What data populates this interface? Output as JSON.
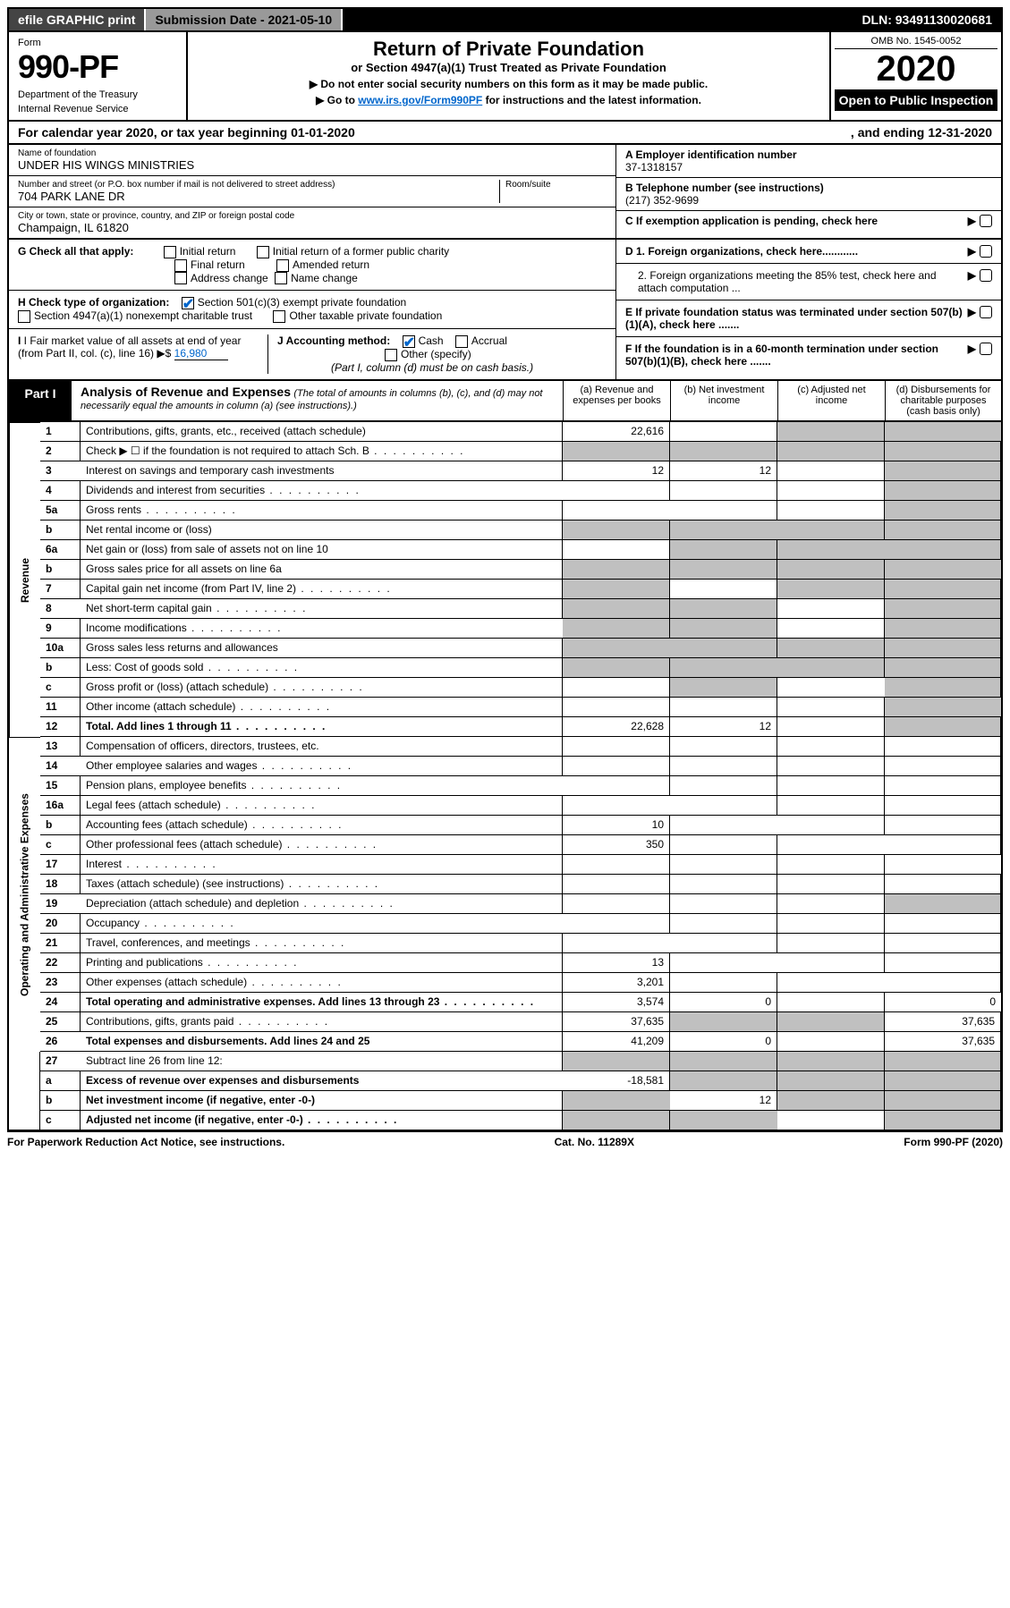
{
  "topbar": {
    "efile": "efile GRAPHIC print",
    "submission_label": "Submission Date - 2021-05-10",
    "dln": "DLN: 93491130020681"
  },
  "header": {
    "form_label": "Form",
    "form_number": "990-PF",
    "dept1": "Department of the Treasury",
    "dept2": "Internal Revenue Service",
    "title": "Return of Private Foundation",
    "subtitle": "or Section 4947(a)(1) Trust Treated as Private Foundation",
    "note1": "▶ Do not enter social security numbers on this form as it may be made public.",
    "note2_pre": "▶ Go to ",
    "note2_link": "www.irs.gov/Form990PF",
    "note2_post": " for instructions and the latest information.",
    "omb": "OMB No. 1545-0052",
    "year": "2020",
    "open": "Open to Public Inspection"
  },
  "calyear": {
    "pre": "For calendar year 2020, or tax year beginning ",
    "begin": "01-01-2020",
    "mid": ", and ending ",
    "end": "12-31-2020"
  },
  "identity": {
    "name_label": "Name of foundation",
    "name": "UNDER HIS WINGS MINISTRIES",
    "addr_label": "Number and street (or P.O. box number if mail is not delivered to street address)",
    "addr": "704 PARK LANE DR",
    "room_label": "Room/suite",
    "city_label": "City or town, state or province, country, and ZIP or foreign postal code",
    "city": "Champaign, IL  61820",
    "a_label": "A Employer identification number",
    "a_val": "37-1318157",
    "b_label": "B Telephone number (see instructions)",
    "b_val": "(217) 352-9699",
    "c_label": "C If exemption application is pending, check here",
    "d1_label": "D 1. Foreign organizations, check here............",
    "d2_label": "2. Foreign organizations meeting the 85% test, check here and attach computation ...",
    "e_label": "E  If private foundation status was terminated under section 507(b)(1)(A), check here .......",
    "f_label": "F  If the foundation is in a 60-month termination under section 507(b)(1)(B), check here ......."
  },
  "g": {
    "label": "G Check all that apply:",
    "opts": [
      "Initial return",
      "Final return",
      "Address change",
      "Initial return of a former public charity",
      "Amended return",
      "Name change"
    ]
  },
  "h": {
    "label": "H Check type of organization:",
    "opt1": "Section 501(c)(3) exempt private foundation",
    "opt2": "Section 4947(a)(1) nonexempt charitable trust",
    "opt3": "Other taxable private foundation"
  },
  "i": {
    "label": "I Fair market value of all assets at end of year (from Part II, col. (c), line 16)",
    "arrow": "▶$",
    "val": "16,980"
  },
  "j": {
    "label": "J Accounting method:",
    "cash": "Cash",
    "accrual": "Accrual",
    "other": "Other (specify)",
    "note": "(Part I, column (d) must be on cash basis.)"
  },
  "part1": {
    "tab": "Part I",
    "title": "Analysis of Revenue and Expenses",
    "note": "(The total of amounts in columns (b), (c), and (d) may not necessarily equal the amounts in column (a) (see instructions).)",
    "col_a": "(a)   Revenue and expenses per books",
    "col_b": "(b)   Net investment income",
    "col_c": "(c)   Adjusted net income",
    "col_d": "(d)   Disbursements for charitable purposes (cash basis only)"
  },
  "sections": {
    "revenue": "Revenue",
    "opexp": "Operating and Administrative Expenses"
  },
  "rows": [
    {
      "n": "1",
      "d": "Contributions, gifts, grants, etc., received (attach schedule)",
      "a": "22,616",
      "b": "",
      "c": "grey",
      "dcol": "grey",
      "sec": "rev"
    },
    {
      "n": "2",
      "d": "Check ▶ ☐ if the foundation is not required to attach Sch. B",
      "a": "grey",
      "b": "grey",
      "c": "grey",
      "dcol": "grey",
      "sec": "rev",
      "dots": true
    },
    {
      "n": "3",
      "d": "Interest on savings and temporary cash investments",
      "a": "12",
      "b": "12",
      "c": "",
      "dcol": "grey",
      "sec": "rev"
    },
    {
      "n": "4",
      "d": "Dividends and interest from securities",
      "a": "",
      "b": "",
      "c": "",
      "dcol": "grey",
      "sec": "rev",
      "dots": true
    },
    {
      "n": "5a",
      "d": "Gross rents",
      "a": "",
      "b": "",
      "c": "",
      "dcol": "grey",
      "sec": "rev",
      "dots": true
    },
    {
      "n": "b",
      "d": "Net rental income or (loss)",
      "a": "grey",
      "b": "grey",
      "c": "grey",
      "dcol": "grey",
      "sec": "rev"
    },
    {
      "n": "6a",
      "d": "Net gain or (loss) from sale of assets not on line 10",
      "a": "",
      "b": "grey",
      "c": "grey",
      "dcol": "grey",
      "sec": "rev"
    },
    {
      "n": "b",
      "d": "Gross sales price for all assets on line 6a",
      "a": "grey",
      "b": "grey",
      "c": "grey",
      "dcol": "grey",
      "sec": "rev"
    },
    {
      "n": "7",
      "d": "Capital gain net income (from Part IV, line 2)",
      "a": "grey",
      "b": "",
      "c": "grey",
      "dcol": "grey",
      "sec": "rev",
      "dots": true
    },
    {
      "n": "8",
      "d": "Net short-term capital gain",
      "a": "grey",
      "b": "grey",
      "c": "",
      "dcol": "grey",
      "sec": "rev",
      "dots": true
    },
    {
      "n": "9",
      "d": "Income modifications",
      "a": "grey",
      "b": "grey",
      "c": "",
      "dcol": "grey",
      "sec": "rev",
      "dots": true
    },
    {
      "n": "10a",
      "d": "Gross sales less returns and allowances",
      "a": "grey",
      "b": "grey",
      "c": "grey",
      "dcol": "grey",
      "sec": "rev"
    },
    {
      "n": "b",
      "d": "Less: Cost of goods sold",
      "a": "grey",
      "b": "grey",
      "c": "grey",
      "dcol": "grey",
      "sec": "rev",
      "dots": true
    },
    {
      "n": "c",
      "d": "Gross profit or (loss) (attach schedule)",
      "a": "",
      "b": "grey",
      "c": "",
      "dcol": "grey",
      "sec": "rev",
      "dots": true
    },
    {
      "n": "11",
      "d": "Other income (attach schedule)",
      "a": "",
      "b": "",
      "c": "",
      "dcol": "grey",
      "sec": "rev",
      "dots": true
    },
    {
      "n": "12",
      "d": "Total. Add lines 1 through 11",
      "a": "22,628",
      "b": "12",
      "c": "",
      "dcol": "grey",
      "sec": "rev",
      "bold": true,
      "dots": true
    },
    {
      "n": "13",
      "d": "Compensation of officers, directors, trustees, etc.",
      "a": "",
      "b": "",
      "c": "",
      "dcol": "",
      "sec": "op"
    },
    {
      "n": "14",
      "d": "Other employee salaries and wages",
      "a": "",
      "b": "",
      "c": "",
      "dcol": "",
      "sec": "op",
      "dots": true
    },
    {
      "n": "15",
      "d": "Pension plans, employee benefits",
      "a": "",
      "b": "",
      "c": "",
      "dcol": "",
      "sec": "op",
      "dots": true
    },
    {
      "n": "16a",
      "d": "Legal fees (attach schedule)",
      "a": "",
      "b": "",
      "c": "",
      "dcol": "",
      "sec": "op",
      "dots": true
    },
    {
      "n": "b",
      "d": "Accounting fees (attach schedule)",
      "a": "10",
      "b": "",
      "c": "",
      "dcol": "",
      "sec": "op",
      "dots": true
    },
    {
      "n": "c",
      "d": "Other professional fees (attach schedule)",
      "a": "350",
      "b": "",
      "c": "",
      "dcol": "",
      "sec": "op",
      "dots": true
    },
    {
      "n": "17",
      "d": "Interest",
      "a": "",
      "b": "",
      "c": "",
      "dcol": "",
      "sec": "op",
      "dots": true
    },
    {
      "n": "18",
      "d": "Taxes (attach schedule) (see instructions)",
      "a": "",
      "b": "",
      "c": "",
      "dcol": "",
      "sec": "op",
      "dots": true
    },
    {
      "n": "19",
      "d": "Depreciation (attach schedule) and depletion",
      "a": "",
      "b": "",
      "c": "",
      "dcol": "grey",
      "sec": "op",
      "dots": true
    },
    {
      "n": "20",
      "d": "Occupancy",
      "a": "",
      "b": "",
      "c": "",
      "dcol": "",
      "sec": "op",
      "dots": true
    },
    {
      "n": "21",
      "d": "Travel, conferences, and meetings",
      "a": "",
      "b": "",
      "c": "",
      "dcol": "",
      "sec": "op",
      "dots": true
    },
    {
      "n": "22",
      "d": "Printing and publications",
      "a": "13",
      "b": "",
      "c": "",
      "dcol": "",
      "sec": "op",
      "dots": true
    },
    {
      "n": "23",
      "d": "Other expenses (attach schedule)",
      "a": "3,201",
      "b": "",
      "c": "",
      "dcol": "",
      "sec": "op",
      "dots": true
    },
    {
      "n": "24",
      "d": "Total operating and administrative expenses. Add lines 13 through 23",
      "a": "3,574",
      "b": "0",
      "c": "",
      "dcol": "0",
      "sec": "op",
      "bold": true,
      "dots": true
    },
    {
      "n": "25",
      "d": "Contributions, gifts, grants paid",
      "a": "37,635",
      "b": "grey",
      "c": "grey",
      "dcol": "37,635",
      "sec": "op",
      "dots": true
    },
    {
      "n": "26",
      "d": "Total expenses and disbursements. Add lines 24 and 25",
      "a": "41,209",
      "b": "0",
      "c": "",
      "dcol": "37,635",
      "sec": "op",
      "bold": true
    },
    {
      "n": "27",
      "d": "Subtract line 26 from line 12:",
      "a": "grey",
      "b": "grey",
      "c": "grey",
      "dcol": "grey",
      "sec": "none"
    },
    {
      "n": "a",
      "d": "Excess of revenue over expenses and disbursements",
      "a": "-18,581",
      "b": "grey",
      "c": "grey",
      "dcol": "grey",
      "sec": "none",
      "bold": true
    },
    {
      "n": "b",
      "d": "Net investment income (if negative, enter -0-)",
      "a": "grey",
      "b": "12",
      "c": "grey",
      "dcol": "grey",
      "sec": "none",
      "bold": true
    },
    {
      "n": "c",
      "d": "Adjusted net income (if negative, enter -0-)",
      "a": "grey",
      "b": "grey",
      "c": "",
      "dcol": "grey",
      "sec": "none",
      "bold": true,
      "dots": true
    }
  ],
  "footer": {
    "left": "For Paperwork Reduction Act Notice, see instructions.",
    "mid": "Cat. No. 11289X",
    "right": "Form 990-PF (2020)"
  }
}
